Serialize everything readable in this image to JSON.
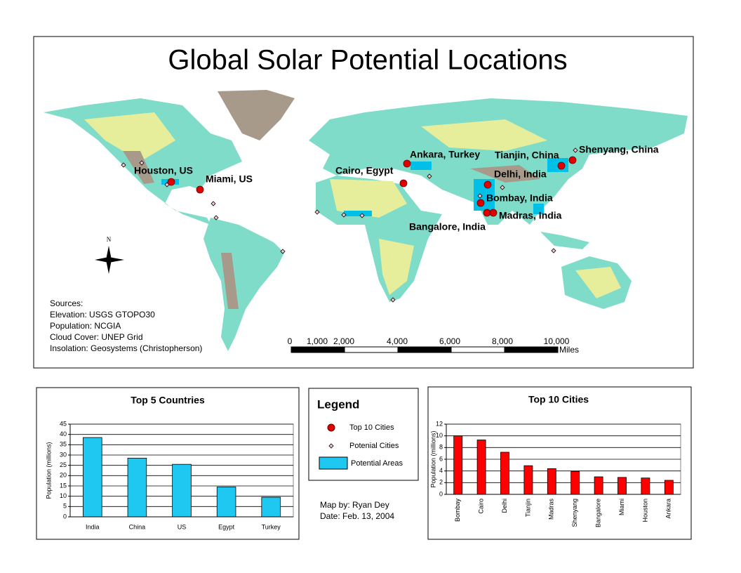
{
  "map": {
    "title": "Global Solar Potential Locations",
    "cities": [
      "Houston, US",
      "Miami, US",
      "Cairo, Egypt",
      "Ankara, Turkey",
      "Tianjin, China",
      "Shenyang, China",
      "Delhi, India",
      "Bombay, India",
      "Madras, India",
      "Bangalore, India"
    ],
    "sources": [
      "Sources:",
      "Elevation: USGS GTOPO30",
      "Population: NCGIA",
      "Cloud Cover: UNEP Grid",
      "Insolation: Geosystems (Christopherson)"
    ],
    "scale": {
      "labels": [
        "0",
        "1,000",
        "2,000",
        "4,000",
        "6,000",
        "8,000",
        "10,000"
      ],
      "unit": "Miles"
    },
    "north": "N"
  },
  "legend": {
    "title": "Legend",
    "items": [
      "Top 10 Cities",
      "Potenial Cities",
      "Potential Areas"
    ]
  },
  "credits": [
    "Map by: Ryan Dey",
    "Date: Feb. 13, 2004"
  ],
  "chart_data": [
    {
      "type": "bar",
      "title": "Top 5 Countries",
      "ylabel": "Population (millions)",
      "categories": [
        "India",
        "China",
        "US",
        "Egypt",
        "Turkey"
      ],
      "values": [
        38.5,
        28.5,
        25.5,
        14.5,
        9.5
      ],
      "color": "#1ec8f0",
      "ylim": [
        0,
        45
      ],
      "yticks": [
        0,
        5,
        10,
        15,
        20,
        25,
        30,
        35,
        40,
        45
      ],
      "grid": true
    },
    {
      "type": "bar",
      "title": "Top 10 Cities",
      "ylabel": "Population (millions)",
      "categories": [
        "Bombay",
        "Cairo",
        "Delhi",
        "Tianjin",
        "Madras",
        "Shenyang",
        "Bangalore",
        "Miami",
        "Houston",
        "Ankara"
      ],
      "values": [
        10,
        9.3,
        7.2,
        4.9,
        4.4,
        3.9,
        3,
        2.9,
        2.8,
        2.4
      ],
      "color": "#ff0000",
      "ylim": [
        0,
        12
      ],
      "yticks": [
        0,
        2,
        4,
        6,
        8,
        10,
        12
      ],
      "grid": true
    }
  ]
}
